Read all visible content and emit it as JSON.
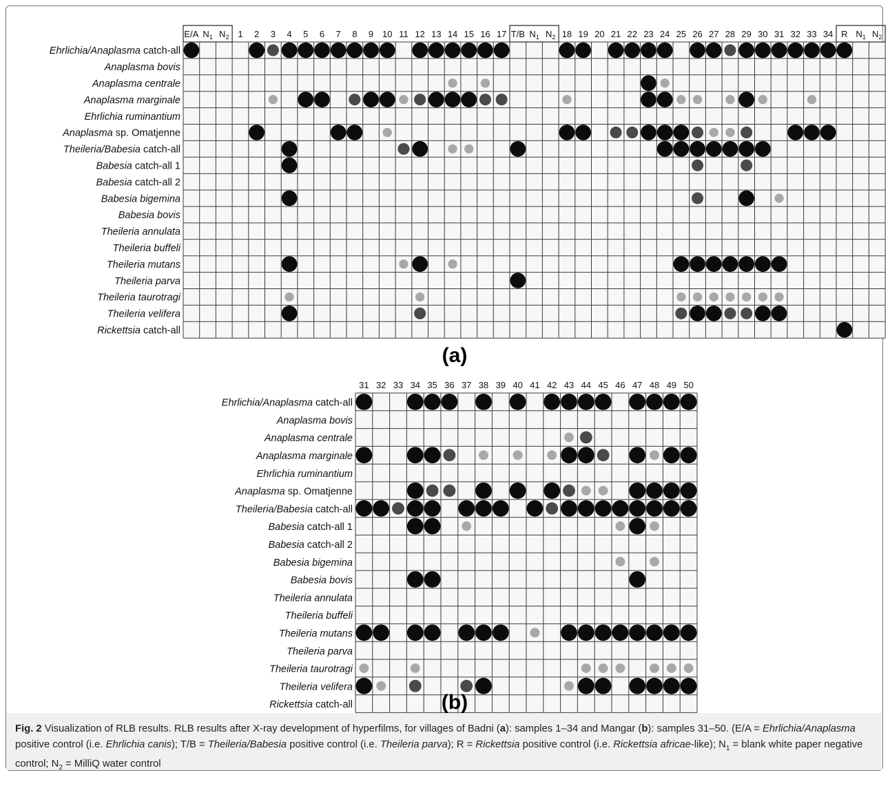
{
  "rows": [
    {
      "italic": "Ehrlichia/Anaplasma",
      "plain": " catch-all"
    },
    {
      "italic": "Anaplasma bovis",
      "plain": ""
    },
    {
      "italic": "Anaplasma centrale",
      "plain": ""
    },
    {
      "italic": "Anaplasma marginale",
      "plain": ""
    },
    {
      "italic": "Ehrlichia ruminantium",
      "plain": ""
    },
    {
      "italic": "Anaplasma",
      "plain": " sp. Omatjenne"
    },
    {
      "italic": "Theileria/Babesia",
      "plain": " catch-all"
    },
    {
      "italic": "Babesia",
      "plain": " catch-all 1"
    },
    {
      "italic": "Babesia",
      "plain": " catch-all 2"
    },
    {
      "italic": "Babesia bigemina",
      "plain": ""
    },
    {
      "italic": "Babesia bovis",
      "plain": ""
    },
    {
      "italic": "Theileria annulata",
      "plain": ""
    },
    {
      "italic": "Theileria buffeli",
      "plain": ""
    },
    {
      "italic": "Theileria mutans",
      "plain": ""
    },
    {
      "italic": "Theileria parva",
      "plain": ""
    },
    {
      "italic": "Theileria taurotragi",
      "plain": ""
    },
    {
      "italic": "Theileria velifera",
      "plain": ""
    },
    {
      "italic": "Rickettsia",
      "plain": " catch-all"
    }
  ],
  "panel_a": {
    "letter": "(a)",
    "columns": [
      "E/A",
      "N1",
      "N2",
      "1",
      "2",
      "3",
      "4",
      "5",
      "6",
      "7",
      "8",
      "9",
      "10",
      "11",
      "12",
      "13",
      "14",
      "15",
      "16",
      "17",
      "T/B",
      "N1",
      "N2",
      "18",
      "19",
      "20",
      "21",
      "22",
      "23",
      "24",
      "25",
      "26",
      "27",
      "28",
      "29",
      "30",
      "31",
      "32",
      "33",
      "34",
      "R",
      "N1",
      "N2"
    ],
    "boxed_groups": [
      [
        0,
        2
      ],
      [
        20,
        22
      ],
      [
        40,
        42
      ]
    ],
    "spots": [
      [
        0,
        0,
        3
      ],
      [
        0,
        4,
        3
      ],
      [
        0,
        5,
        2
      ],
      [
        0,
        6,
        3
      ],
      [
        0,
        7,
        3
      ],
      [
        0,
        8,
        3
      ],
      [
        0,
        9,
        3
      ],
      [
        0,
        10,
        3
      ],
      [
        0,
        11,
        3
      ],
      [
        0,
        12,
        3
      ],
      [
        0,
        14,
        3
      ],
      [
        0,
        15,
        3
      ],
      [
        0,
        16,
        3
      ],
      [
        0,
        17,
        3
      ],
      [
        0,
        18,
        3
      ],
      [
        0,
        19,
        3
      ],
      [
        0,
        23,
        3
      ],
      [
        0,
        24,
        3
      ],
      [
        0,
        26,
        3
      ],
      [
        0,
        27,
        3
      ],
      [
        0,
        28,
        3
      ],
      [
        0,
        29,
        3
      ],
      [
        0,
        31,
        3
      ],
      [
        0,
        32,
        3
      ],
      [
        0,
        33,
        2
      ],
      [
        0,
        34,
        3
      ],
      [
        0,
        35,
        3
      ],
      [
        0,
        36,
        3
      ],
      [
        0,
        37,
        3
      ],
      [
        0,
        38,
        3
      ],
      [
        0,
        39,
        3
      ],
      [
        0,
        40,
        3
      ],
      [
        2,
        16,
        1
      ],
      [
        2,
        18,
        1
      ],
      [
        2,
        28,
        3
      ],
      [
        2,
        29,
        1
      ],
      [
        3,
        5,
        1
      ],
      [
        3,
        7,
        3
      ],
      [
        3,
        8,
        3
      ],
      [
        3,
        10,
        2
      ],
      [
        3,
        11,
        3
      ],
      [
        3,
        12,
        3
      ],
      [
        3,
        13,
        1
      ],
      [
        3,
        14,
        2
      ],
      [
        3,
        15,
        3
      ],
      [
        3,
        16,
        3
      ],
      [
        3,
        17,
        3
      ],
      [
        3,
        18,
        2
      ],
      [
        3,
        19,
        2
      ],
      [
        3,
        23,
        1
      ],
      [
        3,
        28,
        3
      ],
      [
        3,
        29,
        3
      ],
      [
        3,
        30,
        1
      ],
      [
        3,
        31,
        1
      ],
      [
        3,
        33,
        1
      ],
      [
        3,
        34,
        3
      ],
      [
        3,
        35,
        1
      ],
      [
        3,
        38,
        1
      ],
      [
        5,
        4,
        3
      ],
      [
        5,
        9,
        3
      ],
      [
        5,
        10,
        3
      ],
      [
        5,
        12,
        1
      ],
      [
        5,
        23,
        3
      ],
      [
        5,
        24,
        3
      ],
      [
        5,
        26,
        2
      ],
      [
        5,
        27,
        2
      ],
      [
        5,
        28,
        3
      ],
      [
        5,
        29,
        3
      ],
      [
        5,
        30,
        3
      ],
      [
        5,
        31,
        2
      ],
      [
        5,
        32,
        1
      ],
      [
        5,
        33,
        1
      ],
      [
        5,
        34,
        2
      ],
      [
        5,
        37,
        3
      ],
      [
        5,
        38,
        3
      ],
      [
        5,
        39,
        3
      ],
      [
        6,
        6,
        3
      ],
      [
        6,
        13,
        2
      ],
      [
        6,
        14,
        3
      ],
      [
        6,
        16,
        1
      ],
      [
        6,
        17,
        1
      ],
      [
        6,
        20,
        3
      ],
      [
        6,
        29,
        3
      ],
      [
        6,
        30,
        3
      ],
      [
        6,
        31,
        3
      ],
      [
        6,
        32,
        3
      ],
      [
        6,
        33,
        3
      ],
      [
        6,
        34,
        3
      ],
      [
        6,
        35,
        3
      ],
      [
        7,
        6,
        3
      ],
      [
        7,
        31,
        2
      ],
      [
        7,
        34,
        2
      ],
      [
        9,
        6,
        3
      ],
      [
        9,
        31,
        2
      ],
      [
        9,
        34,
        3
      ],
      [
        9,
        36,
        1
      ],
      [
        13,
        6,
        3
      ],
      [
        13,
        13,
        1
      ],
      [
        13,
        14,
        3
      ],
      [
        13,
        16,
        1
      ],
      [
        13,
        30,
        3
      ],
      [
        13,
        31,
        3
      ],
      [
        13,
        32,
        3
      ],
      [
        13,
        33,
        3
      ],
      [
        13,
        34,
        3
      ],
      [
        13,
        35,
        3
      ],
      [
        13,
        36,
        3
      ],
      [
        14,
        20,
        3
      ],
      [
        15,
        6,
        1
      ],
      [
        15,
        14,
        1
      ],
      [
        15,
        30,
        1
      ],
      [
        15,
        31,
        1
      ],
      [
        15,
        32,
        1
      ],
      [
        15,
        33,
        1
      ],
      [
        15,
        34,
        1
      ],
      [
        15,
        35,
        1
      ],
      [
        15,
        36,
        1
      ],
      [
        16,
        6,
        3
      ],
      [
        16,
        14,
        2
      ],
      [
        16,
        30,
        2
      ],
      [
        16,
        31,
        3
      ],
      [
        16,
        32,
        3
      ],
      [
        16,
        33,
        2
      ],
      [
        16,
        34,
        2
      ],
      [
        16,
        35,
        3
      ],
      [
        16,
        36,
        3
      ],
      [
        17,
        40,
        3
      ]
    ]
  },
  "panel_b": {
    "letter": "(b)",
    "columns": [
      "31",
      "32",
      "33",
      "34",
      "35",
      "36",
      "37",
      "38",
      "39",
      "40",
      "41",
      "42",
      "43",
      "44",
      "45",
      "46",
      "47",
      "48",
      "49",
      "50"
    ],
    "spots": [
      [
        0,
        0,
        3
      ],
      [
        0,
        3,
        3
      ],
      [
        0,
        4,
        3
      ],
      [
        0,
        5,
        3
      ],
      [
        0,
        7,
        3
      ],
      [
        0,
        9,
        3
      ],
      [
        0,
        11,
        3
      ],
      [
        0,
        12,
        3
      ],
      [
        0,
        13,
        3
      ],
      [
        0,
        14,
        3
      ],
      [
        0,
        16,
        3
      ],
      [
        0,
        17,
        3
      ],
      [
        0,
        18,
        3
      ],
      [
        0,
        19,
        3
      ],
      [
        2,
        12,
        1
      ],
      [
        2,
        13,
        2
      ],
      [
        3,
        0,
        3
      ],
      [
        3,
        3,
        3
      ],
      [
        3,
        4,
        3
      ],
      [
        3,
        5,
        2
      ],
      [
        3,
        7,
        1
      ],
      [
        3,
        9,
        1
      ],
      [
        3,
        11,
        1
      ],
      [
        3,
        12,
        3
      ],
      [
        3,
        13,
        3
      ],
      [
        3,
        14,
        2
      ],
      [
        3,
        16,
        3
      ],
      [
        3,
        17,
        1
      ],
      [
        3,
        18,
        3
      ],
      [
        3,
        19,
        3
      ],
      [
        5,
        3,
        3
      ],
      [
        5,
        4,
        2
      ],
      [
        5,
        5,
        2
      ],
      [
        5,
        7,
        3
      ],
      [
        5,
        9,
        3
      ],
      [
        5,
        11,
        3
      ],
      [
        5,
        12,
        2
      ],
      [
        5,
        13,
        1
      ],
      [
        5,
        14,
        1
      ],
      [
        5,
        16,
        3
      ],
      [
        5,
        17,
        3
      ],
      [
        5,
        18,
        3
      ],
      [
        5,
        19,
        3
      ],
      [
        6,
        0,
        3
      ],
      [
        6,
        1,
        3
      ],
      [
        6,
        2,
        2
      ],
      [
        6,
        3,
        3
      ],
      [
        6,
        4,
        3
      ],
      [
        6,
        6,
        3
      ],
      [
        6,
        7,
        3
      ],
      [
        6,
        8,
        3
      ],
      [
        6,
        10,
        3
      ],
      [
        6,
        11,
        2
      ],
      [
        6,
        12,
        3
      ],
      [
        6,
        13,
        3
      ],
      [
        6,
        14,
        3
      ],
      [
        6,
        15,
        3
      ],
      [
        6,
        16,
        3
      ],
      [
        6,
        17,
        3
      ],
      [
        6,
        18,
        3
      ],
      [
        6,
        19,
        3
      ],
      [
        7,
        3,
        3
      ],
      [
        7,
        4,
        3
      ],
      [
        7,
        6,
        1
      ],
      [
        7,
        15,
        1
      ],
      [
        7,
        16,
        3
      ],
      [
        7,
        17,
        1
      ],
      [
        9,
        15,
        1
      ],
      [
        9,
        17,
        1
      ],
      [
        10,
        3,
        3
      ],
      [
        10,
        4,
        3
      ],
      [
        10,
        16,
        3
      ],
      [
        13,
        0,
        3
      ],
      [
        13,
        1,
        3
      ],
      [
        13,
        3,
        3
      ],
      [
        13,
        4,
        3
      ],
      [
        13,
        6,
        3
      ],
      [
        13,
        7,
        3
      ],
      [
        13,
        8,
        3
      ],
      [
        13,
        10,
        1
      ],
      [
        13,
        12,
        3
      ],
      [
        13,
        13,
        3
      ],
      [
        13,
        14,
        3
      ],
      [
        13,
        15,
        3
      ],
      [
        13,
        16,
        3
      ],
      [
        13,
        17,
        3
      ],
      [
        13,
        18,
        3
      ],
      [
        13,
        19,
        3
      ],
      [
        15,
        0,
        1
      ],
      [
        15,
        3,
        1
      ],
      [
        15,
        13,
        1
      ],
      [
        15,
        14,
        1
      ],
      [
        15,
        15,
        1
      ],
      [
        15,
        17,
        1
      ],
      [
        15,
        18,
        1
      ],
      [
        15,
        19,
        1
      ],
      [
        16,
        0,
        3
      ],
      [
        16,
        1,
        1
      ],
      [
        16,
        3,
        2
      ],
      [
        16,
        6,
        2
      ],
      [
        16,
        7,
        3
      ],
      [
        16,
        12,
        1
      ],
      [
        16,
        13,
        3
      ],
      [
        16,
        14,
        3
      ],
      [
        16,
        16,
        3
      ],
      [
        16,
        17,
        3
      ],
      [
        16,
        18,
        3
      ],
      [
        16,
        19,
        3
      ]
    ]
  },
  "caption": {
    "fig_label": "Fig. 2",
    "parts": [
      {
        "t": "Visualization of RLB results. RLB results after X-ray development of hyperfilms, for villages of Badni (",
        "s": "n"
      },
      {
        "t": "a",
        "s": "b"
      },
      {
        "t": "): samples 1–34 and Mangar (",
        "s": "n"
      },
      {
        "t": "b",
        "s": "b"
      },
      {
        "t": "): samples 31–50. (E/A = ",
        "s": "n"
      },
      {
        "t": "Ehrlichia/Anaplasma",
        "s": "i"
      },
      {
        "t": " positive control (i.e. ",
        "s": "n"
      },
      {
        "t": "Ehrlichia canis",
        "s": "i"
      },
      {
        "t": "); T/B = ",
        "s": "n"
      },
      {
        "t": "Theileria/Babesia",
        "s": "i"
      },
      {
        "t": " positive control (i.e. ",
        "s": "n"
      },
      {
        "t": "Theileria parva",
        "s": "i"
      },
      {
        "t": "); R = ",
        "s": "n"
      },
      {
        "t": "Rickettsia",
        "s": "i"
      },
      {
        "t": " positive control (i.e. ",
        "s": "n"
      },
      {
        "t": "Rickettsia africae",
        "s": "i"
      },
      {
        "t": "-like); N",
        "s": "n"
      },
      {
        "t": "1",
        "s": "sub"
      },
      {
        "t": " = blank white paper negative control; N",
        "s": "n"
      },
      {
        "t": "2",
        "s": "sub"
      },
      {
        "t": " = MilliQ water control",
        "s": "n"
      }
    ]
  },
  "colors": {
    "grid": "#3a3a3a",
    "spot": "#111111",
    "background": "#f7f7f7"
  }
}
